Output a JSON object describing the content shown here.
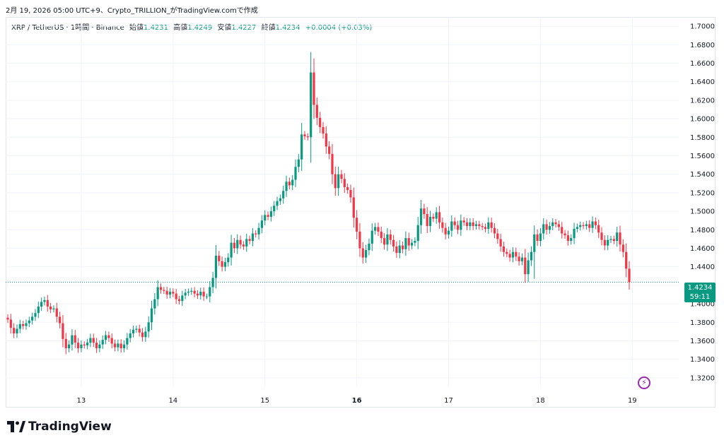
{
  "header": {
    "title": "2月 19, 2026 05:00 UTC+9、Crypto_TRILLION_がTradingView.comで作成"
  },
  "legend": {
    "symbol": "XRP / TetherUS · 1時間 · Binance",
    "open_label": "始値",
    "open": "1.4231",
    "high_label": "高値",
    "high": "1.4249",
    "low_label": "安値",
    "low": "1.4227",
    "close_label": "終値",
    "close": "1.4234",
    "change": "+0.0004 (+0.03%)"
  },
  "price_badge": {
    "price": "1.4234",
    "countdown": "59:11"
  },
  "branding": {
    "logo_text": "TradingView"
  },
  "icons": {
    "bolt": "lightning-icon"
  },
  "colors": {
    "up": "#089981",
    "down": "#f23645",
    "grid": "#f0f3fa",
    "last_line": "#089981"
  },
  "chart_data": {
    "type": "candlestick",
    "title": "",
    "xlabel": "",
    "ylabel": "",
    "ylim": [
      1.31,
      1.71
    ],
    "grid": true,
    "y_ticks": [
      "1.7000",
      "1.6800",
      "1.6600",
      "1.6400",
      "1.6200",
      "1.6000",
      "1.5800",
      "1.5600",
      "1.5400",
      "1.5200",
      "1.5000",
      "1.4800",
      "1.4600",
      "1.4400",
      "1.4200",
      "1.4000",
      "1.3800",
      "1.3600",
      "1.3400",
      "1.3200"
    ],
    "x_ticks": [
      {
        "label": "13",
        "bar": 24,
        "bold": false
      },
      {
        "label": "14",
        "bar": 54,
        "bold": false
      },
      {
        "label": "15",
        "bar": 84,
        "bold": false
      },
      {
        "label": "16",
        "bar": 114,
        "bold": true
      },
      {
        "label": "17",
        "bar": 144,
        "bold": false
      },
      {
        "label": "18",
        "bar": 174,
        "bold": false
      },
      {
        "label": "19",
        "bar": 204,
        "bold": false
      }
    ],
    "last_price": 1.4234,
    "bars_per_day": 24,
    "close_series": [
      1.383,
      1.374,
      1.368,
      1.373,
      1.378,
      1.376,
      1.379,
      1.382,
      1.386,
      1.39,
      1.397,
      1.402,
      1.404,
      1.397,
      1.394,
      1.395,
      1.386,
      1.379,
      1.362,
      1.352,
      1.356,
      1.366,
      1.358,
      1.352,
      1.356,
      1.355,
      1.358,
      1.363,
      1.358,
      1.352,
      1.356,
      1.361,
      1.366,
      1.363,
      1.357,
      1.353,
      1.357,
      1.352,
      1.356,
      1.363,
      1.368,
      1.372,
      1.373,
      1.369,
      1.364,
      1.37,
      1.38,
      1.395,
      1.405,
      1.418,
      1.415,
      1.414,
      1.41,
      1.413,
      1.411,
      1.405,
      1.403,
      1.409,
      1.412,
      1.413,
      1.414,
      1.411,
      1.409,
      1.413,
      1.408,
      1.408,
      1.418,
      1.428,
      1.452,
      1.446,
      1.44,
      1.445,
      1.45,
      1.466,
      1.46,
      1.469,
      1.464,
      1.462,
      1.47,
      1.468,
      1.476,
      1.475,
      1.482,
      1.49,
      1.496,
      1.494,
      1.5,
      1.506,
      1.511,
      1.514,
      1.522,
      1.532,
      1.528,
      1.534,
      1.548,
      1.556,
      1.583,
      1.581,
      1.58,
      1.65,
      1.615,
      1.601,
      1.591,
      1.584,
      1.57,
      1.562,
      1.54,
      1.525,
      1.54,
      1.535,
      1.526,
      1.523,
      1.515,
      1.493,
      1.478,
      1.46,
      1.45,
      1.458,
      1.465,
      1.479,
      1.483,
      1.478,
      1.471,
      1.464,
      1.475,
      1.469,
      1.462,
      1.455,
      1.463,
      1.459,
      1.471,
      1.463,
      1.466,
      1.468,
      1.485,
      1.503,
      1.497,
      1.484,
      1.494,
      1.492,
      1.499,
      1.488,
      1.482,
      1.475,
      1.479,
      1.489,
      1.485,
      1.48,
      1.49,
      1.488,
      1.484,
      1.488,
      1.484,
      1.486,
      1.484,
      1.483,
      1.481,
      1.488,
      1.482,
      1.476,
      1.47,
      1.462,
      1.456,
      1.454,
      1.45,
      1.456,
      1.451,
      1.446,
      1.45,
      1.432,
      1.447,
      1.456,
      1.475,
      1.468,
      1.476,
      1.486,
      1.48,
      1.484,
      1.488,
      1.486,
      1.483,
      1.476,
      1.474,
      1.468,
      1.471,
      1.481,
      1.483,
      1.485,
      1.484,
      1.486,
      1.482,
      1.489,
      1.485,
      1.477,
      1.469,
      1.463,
      1.469,
      1.47,
      1.468,
      1.477,
      1.464,
      1.456,
      1.438,
      1.4234
    ]
  }
}
